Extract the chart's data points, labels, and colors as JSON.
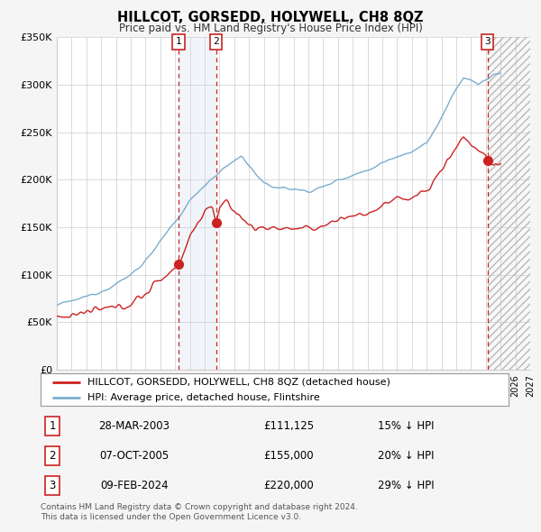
{
  "title": "HILLCOT, GORSEDD, HOLYWELL, CH8 8QZ",
  "subtitle": "Price paid vs. HM Land Registry's House Price Index (HPI)",
  "ylim": [
    0,
    350000
  ],
  "yticks": [
    0,
    50000,
    100000,
    150000,
    200000,
    250000,
    300000,
    350000
  ],
  "ytick_labels": [
    "£0",
    "£50K",
    "£100K",
    "£150K",
    "£200K",
    "£250K",
    "£300K",
    "£350K"
  ],
  "xlim_start": 1995.0,
  "xlim_end": 2027.0,
  "sale_dates": [
    2003.24,
    2005.76,
    2024.11
  ],
  "sale_prices": [
    111125,
    155000,
    220000
  ],
  "sale_labels": [
    "1",
    "2",
    "3"
  ],
  "legend_line1_label": "HILLCOT, GORSEDD, HOLYWELL, CH8 8QZ (detached house)",
  "legend_line2_label": "HPI: Average price, detached house, Flintshire",
  "legend_line1_color": "#cc2222",
  "legend_line2_color": "#7aadcf",
  "table_rows": [
    [
      "1",
      "28-MAR-2003",
      "£111,125",
      "15% ↓ HPI"
    ],
    [
      "2",
      "07-OCT-2005",
      "£155,000",
      "20% ↓ HPI"
    ],
    [
      "3",
      "09-FEB-2024",
      "£220,000",
      "29% ↓ HPI"
    ]
  ],
  "footer_text": "Contains HM Land Registry data © Crown copyright and database right 2024.\nThis data is licensed under the Open Government Licence v3.0.",
  "bg_color": "#f5f5f5",
  "plot_bg_color": "#ffffff",
  "grid_color": "#cccccc",
  "hpi_color": "#7aadcf",
  "price_paid_color": "#cc2222",
  "shade_between_color": "#c8d8ee",
  "shade_after_color": "#dddddd",
  "vline_color": "#cc2222"
}
